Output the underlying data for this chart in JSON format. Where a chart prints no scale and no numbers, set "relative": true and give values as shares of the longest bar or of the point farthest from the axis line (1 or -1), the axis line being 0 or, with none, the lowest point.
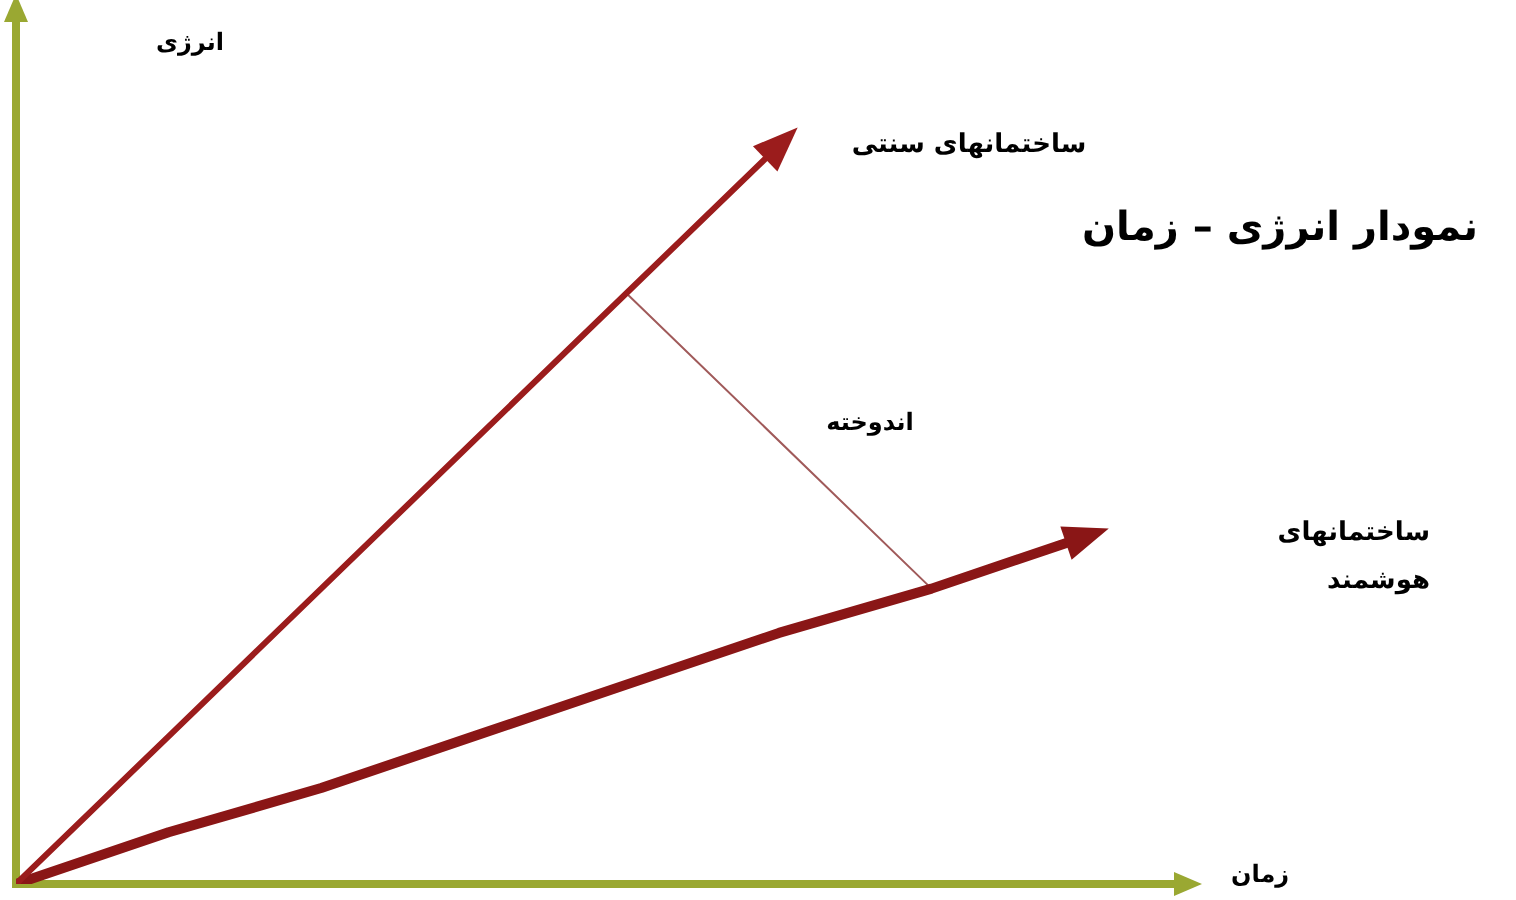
{
  "chart_data": {
    "type": "line",
    "title": "نمودار انرژی – زمان",
    "xlabel": "زمان",
    "ylabel": "انرژی",
    "relative": true,
    "grid": false,
    "legend": false,
    "marker": "none",
    "line_style": "solid",
    "categories": [
      null,
      null,
      null,
      null,
      null,
      null,
      null,
      null
    ],
    "series": [
      {
        "name": "ساختمانهای سنتی",
        "color": "#9b1c1c",
        "values": [
          0,
          0.2,
          0.4,
          0.6,
          0.8,
          1,
          null,
          null
        ]
      },
      {
        "name": "ساختمانهای هوشمند",
        "color": "#8a1616",
        "values": [
          0,
          0.07,
          0.13,
          0.2,
          0.27,
          0.34,
          0.4,
          0.47
        ]
      },
      {
        "type": "line",
        "color": "#a05a5a",
        "values": [
          null,
          null,
          null,
          null,
          0.8,
          null,
          0.4,
          null
        ]
      }
    ],
    "annotations": [
      "اندوخته"
    ]
  }
}
